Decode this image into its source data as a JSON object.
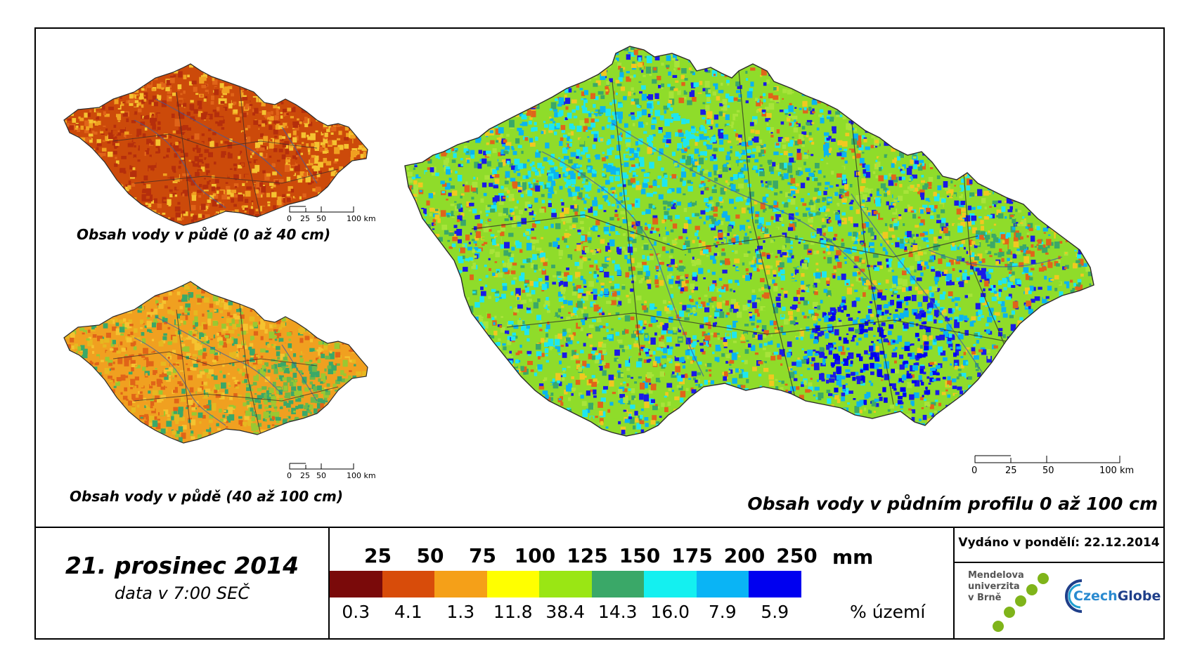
{
  "maps": {
    "top_left_title": "Obsah vody v půdě (0 až 40 cm)",
    "bottom_left_title": "Obsah vody v půdě (40 až 100 cm)",
    "main_title": "Obsah vody v půdním profilu 0 až 100 cm",
    "scale_small": [
      "0",
      "25",
      "50",
      "100 km"
    ],
    "scale_large": [
      "0",
      "25",
      "50",
      "100 km"
    ],
    "colors": {
      "top_left": [
        "#cc4a0a",
        "#e06418",
        "#f0a020",
        "#f5c330",
        "#b52e0c"
      ],
      "bottom_left": [
        "#f0a020",
        "#f5c330",
        "#e6b820",
        "#9ac832",
        "#3aa868",
        "#e06418"
      ],
      "main": [
        "#8fdc2a",
        "#a8e43a",
        "#3aa868",
        "#1ee6f0",
        "#0ab4f0",
        "#1a1ae6",
        "#f0c820",
        "#e0641a"
      ]
    }
  },
  "date": {
    "title": "21. prosinec 2014",
    "subtitle": "data v 7:00 SEČ"
  },
  "legend": {
    "unit": "mm",
    "pct_unit": "% území",
    "thresholds": [
      "25",
      "50",
      "75",
      "100",
      "125",
      "150",
      "175",
      "200",
      "250"
    ],
    "swatch_colors": [
      "#7a0a0a",
      "#d84c0a",
      "#f5a018",
      "#ffff00",
      "#9ae614",
      "#3aa868",
      "#14f0f0",
      "#0ab4f5",
      "#0000f0"
    ],
    "percentages": [
      "0.3",
      "4.1",
      "1.3",
      "11.8",
      "38.4",
      "14.3",
      "16.0",
      "7.9",
      "5.9"
    ]
  },
  "issued": {
    "label": "Vydáno v pondělí: 22.12.2014"
  },
  "logos": {
    "mendel_lines": [
      "Mendelova",
      "univerzita",
      "v Brně"
    ],
    "czechglobe_part1": "Czech",
    "czechglobe_part2": "Globe"
  }
}
